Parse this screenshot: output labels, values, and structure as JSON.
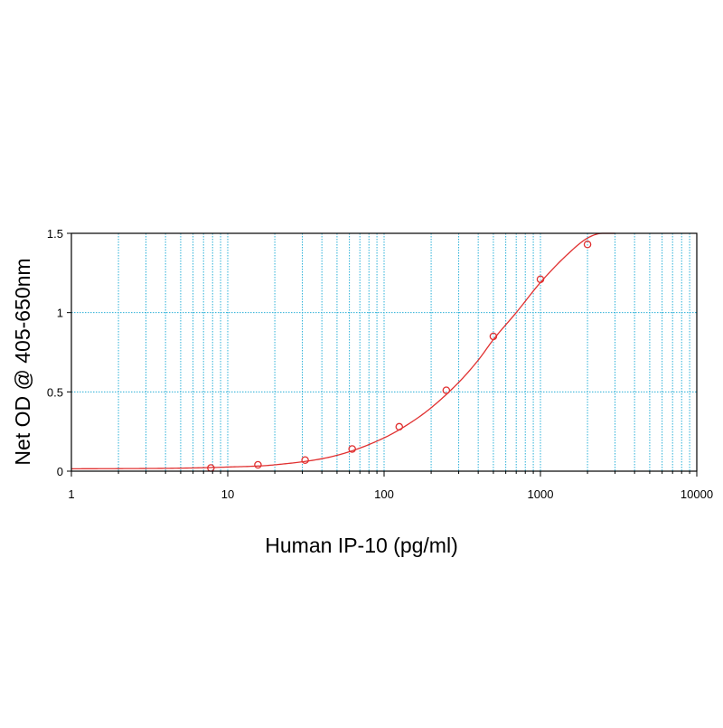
{
  "chart_data": {
    "type": "scatter",
    "xscale": "log",
    "xlim": [
      1,
      10000
    ],
    "ylim": [
      0,
      1.5
    ],
    "xlabel": "Human IP-10 (pg/ml)",
    "ylabel": "Net OD @ 405-650nm",
    "x_ticks": [
      1,
      10,
      100,
      1000,
      10000
    ],
    "x_tick_labels": [
      "1",
      "10",
      "100",
      "1000",
      "10000"
    ],
    "y_ticks": [
      0,
      0.5,
      1,
      1.5
    ],
    "y_tick_labels": [
      "0",
      "0.5",
      "1",
      "1.5"
    ],
    "grid": true,
    "series": [
      {
        "kind": "points",
        "x": [
          7.8,
          15.6,
          31.25,
          62.5,
          125,
          250,
          500,
          1000,
          2000
        ],
        "y": [
          0.02,
          0.04,
          0.07,
          0.14,
          0.28,
          0.51,
          0.85,
          1.21,
          1.43
        ]
      },
      {
        "kind": "fitted_curve",
        "x": [
          1,
          2,
          5,
          10,
          20,
          50,
          100,
          150,
          200,
          300,
          400,
          500,
          700,
          1000,
          1500,
          2000,
          2500,
          3000
        ],
        "y": [
          0.015,
          0.016,
          0.019,
          0.026,
          0.04,
          0.1,
          0.21,
          0.31,
          0.4,
          0.56,
          0.7,
          0.83,
          1.0,
          1.19,
          1.37,
          1.47,
          1.5,
          1.5
        ]
      }
    ],
    "colors": {
      "series": "#e03030",
      "grid": "#2ab0d8",
      "frame": "#000000"
    }
  }
}
